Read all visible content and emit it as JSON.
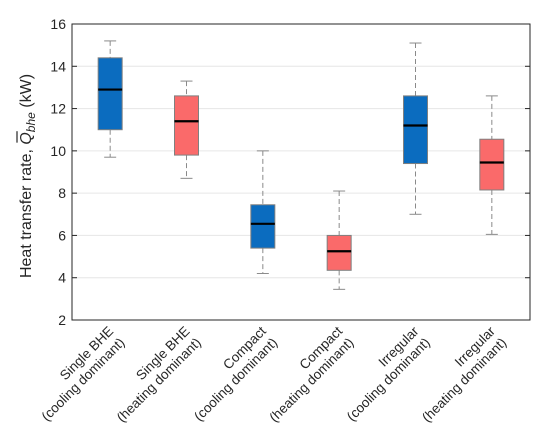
{
  "chart_data": {
    "type": "box",
    "ylabel": {
      "prefix": "Heat transfer rate, ",
      "symbol": "Q",
      "subscript": "bhe",
      "unit": " (kW)"
    },
    "ylim": [
      2,
      16
    ],
    "yticks": [
      "2",
      "4",
      "6",
      "8",
      "10",
      "12",
      "14",
      "16"
    ],
    "grid": "horizontal",
    "categories": [
      [
        "Single BHE",
        "(cooling dominant)"
      ],
      [
        "Single BHE",
        "(heating dominant)"
      ],
      [
        "Compact",
        "(cooling dominant)"
      ],
      [
        "Compact",
        "(heating dominant)"
      ],
      [
        "Irregular",
        "(cooling dominant)"
      ],
      [
        "Irregular",
        "(heating dominant)"
      ]
    ],
    "boxes": [
      {
        "whisker_low": 9.7,
        "q1": 11.0,
        "median": 12.9,
        "q3": 14.4,
        "whisker_high": 15.2,
        "color": "#0b6cbf"
      },
      {
        "whisker_low": 8.7,
        "q1": 9.8,
        "median": 11.4,
        "q3": 12.6,
        "whisker_high": 13.3,
        "color": "#fa6a6a"
      },
      {
        "whisker_low": 4.2,
        "q1": 5.4,
        "median": 6.55,
        "q3": 7.45,
        "whisker_high": 10.0,
        "color": "#0b6cbf"
      },
      {
        "whisker_low": 3.45,
        "q1": 4.35,
        "median": 5.25,
        "q3": 6.0,
        "whisker_high": 8.1,
        "color": "#fa6a6a"
      },
      {
        "whisker_low": 7.0,
        "q1": 9.4,
        "median": 11.2,
        "q3": 12.6,
        "whisker_high": 15.1,
        "color": "#0b6cbf"
      },
      {
        "whisker_low": 6.05,
        "q1": 8.15,
        "median": 9.45,
        "q3": 10.55,
        "whisker_high": 12.6,
        "color": "#fa6a6a"
      }
    ]
  }
}
